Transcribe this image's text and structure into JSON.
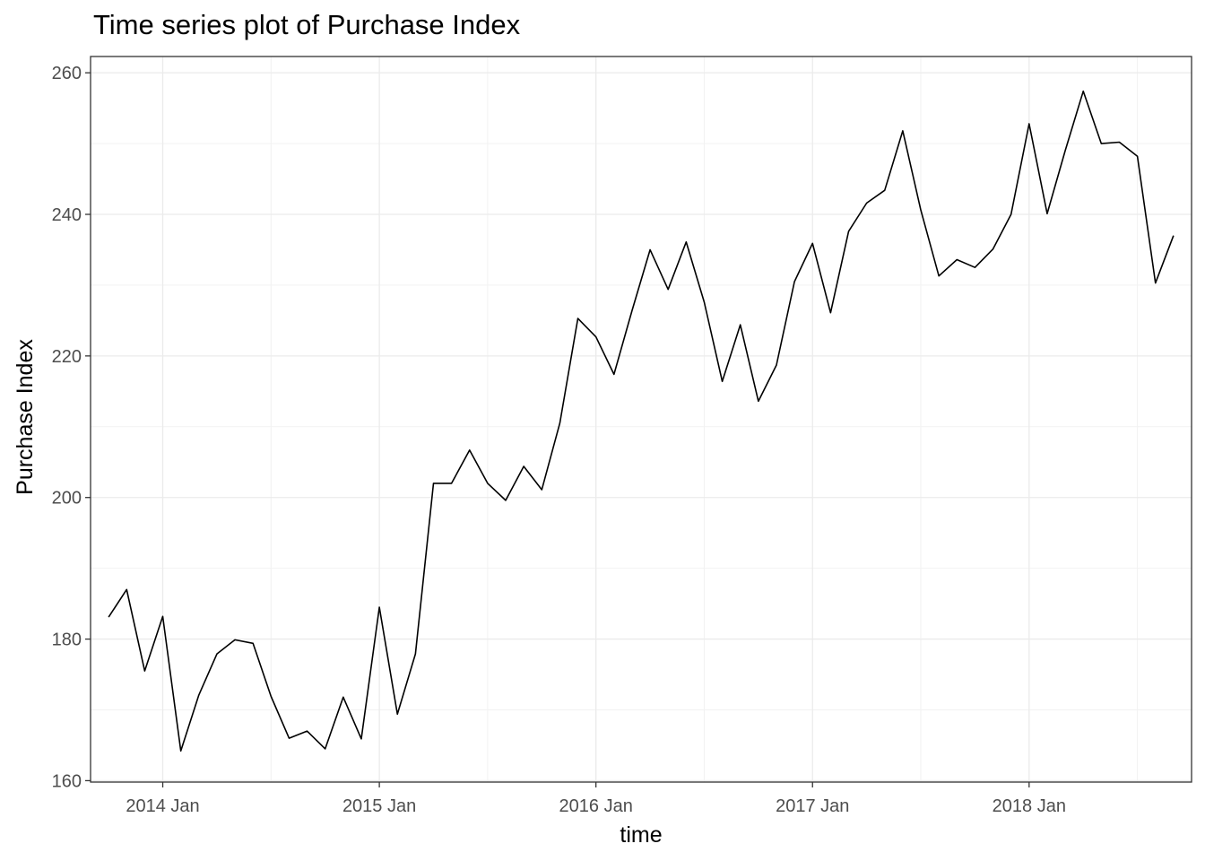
{
  "chart_data": {
    "type": "line",
    "title": "Time series plot of Purchase Index",
    "xlabel": "time",
    "ylabel": "Purchase Index",
    "x_ticks": [
      "2014 Jan",
      "2015 Jan",
      "2016 Jan",
      "2017 Jan",
      "2018 Jan"
    ],
    "y_ticks": [
      160,
      180,
      200,
      220,
      240,
      260
    ],
    "ylim": [
      159.8,
      262.3
    ],
    "xlim": [
      "2013-09",
      "2018-10"
    ],
    "grid": true,
    "series": [
      {
        "line_color": "#000000",
        "x": [
          "2013-10",
          "2013-11",
          "2013-12",
          "2014-01",
          "2014-02",
          "2014-03",
          "2014-04",
          "2014-05",
          "2014-06",
          "2014-07",
          "2014-08",
          "2014-09",
          "2014-10",
          "2014-11",
          "2014-12",
          "2015-01",
          "2015-02",
          "2015-03",
          "2015-04",
          "2015-05",
          "2015-06",
          "2015-07",
          "2015-08",
          "2015-09",
          "2015-10",
          "2015-11",
          "2015-12",
          "2016-01",
          "2016-02",
          "2016-03",
          "2016-04",
          "2016-05",
          "2016-06",
          "2016-07",
          "2016-08",
          "2016-09",
          "2016-10",
          "2016-11",
          "2016-12",
          "2017-01",
          "2017-02",
          "2017-03",
          "2017-04",
          "2017-05",
          "2017-06",
          "2017-07",
          "2017-08",
          "2017-09",
          "2017-10",
          "2017-11",
          "2017-12",
          "2018-01",
          "2018-02",
          "2018-03",
          "2018-04",
          "2018-05",
          "2018-06",
          "2018-07",
          "2018-08",
          "2018-09"
        ],
        "values": [
          183.1,
          187.0,
          175.5,
          183.2,
          164.2,
          172.1,
          177.9,
          179.9,
          179.4,
          171.9,
          166.0,
          167.0,
          164.5,
          171.8,
          165.9,
          184.5,
          169.4,
          177.9,
          202.0,
          202.0,
          206.7,
          202.0,
          199.6,
          204.4,
          201.1,
          210.5,
          225.3,
          222.7,
          217.4,
          226.4,
          235.0,
          229.4,
          236.1,
          227.6,
          216.4,
          224.4,
          213.6,
          218.7,
          230.5,
          235.9,
          226.1,
          237.6,
          241.6,
          243.4,
          251.8,
          240.6,
          231.3,
          233.6,
          232.5,
          235.1,
          240.0,
          252.8,
          240.1,
          249.0,
          257.4,
          250.0,
          250.2,
          248.2,
          230.3,
          237.0
        ]
      }
    ]
  }
}
